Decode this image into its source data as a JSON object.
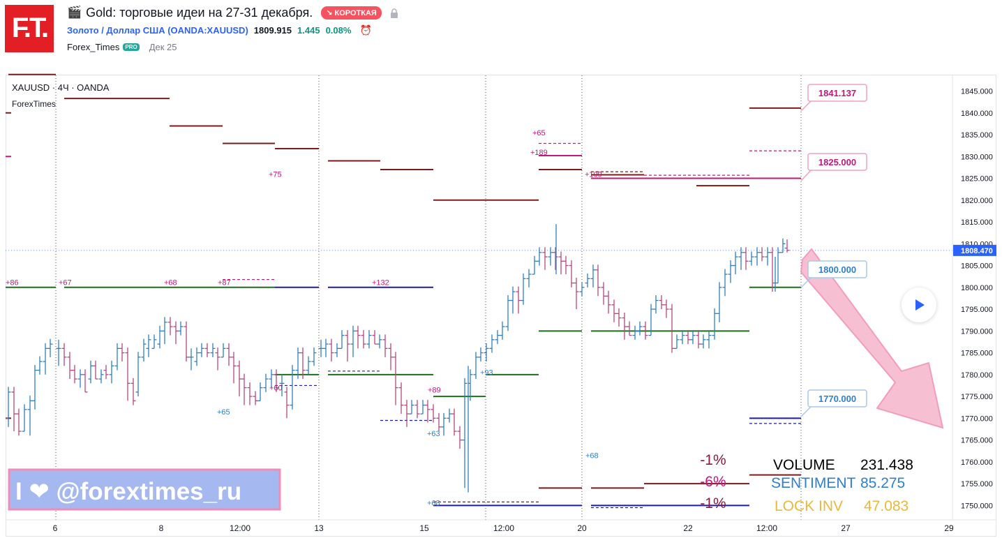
{
  "header": {
    "title": "Gold: торговые идеи на 27-31 декабря.",
    "badge": "↘ КОРОТКАЯ",
    "symbol_link": "Золото / Доллар США (OANDA:XAUUSD)",
    "price": "1809.915",
    "change": "1.445",
    "change_pct": "0.08%",
    "author": "Forex_Times",
    "author_badge": "PRO",
    "date": "Дек 25"
  },
  "logo": {
    "text": "F.T."
  },
  "chart_data": {
    "type": "ohlc",
    "symbol_title": "XAUUSD · 4Ч · OANDA",
    "indicator_name": "ForexTimes",
    "y_ticks": [
      "1845.000",
      "1840.000",
      "1835.000",
      "1830.000",
      "1825.000",
      "1820.000",
      "1815.000",
      "1810.000",
      "1805.000",
      "1800.000",
      "1795.000",
      "1790.000",
      "1785.000",
      "1780.000",
      "1775.000",
      "1770.000",
      "1765.000",
      "1760.000",
      "1755.000",
      "1750.000"
    ],
    "ylim": [
      1746.7,
      1848.6
    ],
    "x_ticks": [
      "6",
      "8",
      "12:00",
      "13",
      "15",
      "12:00",
      "20",
      "22",
      "12:00",
      "27",
      "29"
    ],
    "last_price": "1808.470",
    "callouts": [
      "1841.137",
      "1825.000",
      "1800.000",
      "1770.000"
    ],
    "level_labels": [
      "+86",
      "+67",
      "+68",
      "+87",
      "+132",
      "+75",
      "+65",
      "+189",
      "+109",
      "+60",
      "+65",
      "+89",
      "+63",
      "+93",
      "+68",
      "+68"
    ],
    "stats": [
      {
        "label": "VOLUME",
        "value": "231.438",
        "color": "#000000"
      },
      {
        "label": "SENTIMENT",
        "value": "85.275",
        "color": "#2e7fcf"
      },
      {
        "label": "LOCK INV",
        "value": "47.083",
        "color": "#e8b93a"
      }
    ],
    "percent_labels": [
      "-1%",
      "-6%",
      "-1%"
    ],
    "colors": {
      "up": "#2e7fbf",
      "down": "#b5467d",
      "dark_red": "#7f1a1a",
      "green": "#1b6e1b",
      "navy": "#1c1ca8",
      "pink": "#c2177e",
      "callout": "#f4a0b8"
    }
  },
  "watermark": {
    "text": "I ❤ @forextimes_ru"
  }
}
